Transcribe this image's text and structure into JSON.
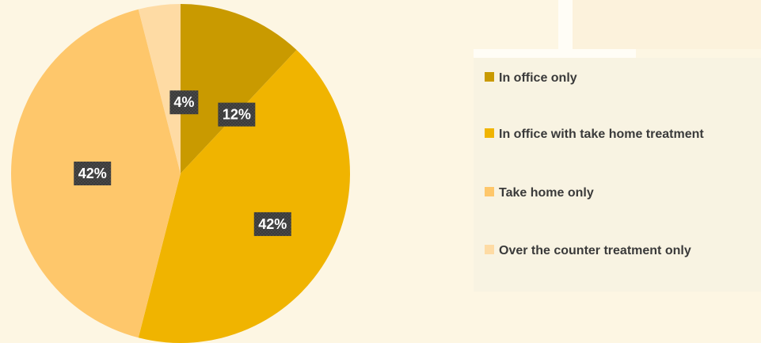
{
  "chart_data": {
    "type": "pie",
    "categories": [
      "In office only",
      "In office with take home treatment",
      "Take home only",
      "Over the counter treatment only"
    ],
    "values": [
      12,
      42,
      42,
      4
    ],
    "data_labels": [
      "12%",
      "42%",
      "42%",
      "4%"
    ],
    "colors": [
      "#c99a00",
      "#f0b400",
      "#fec76b",
      "#fedba4"
    ],
    "legend_position": "right",
    "start_angle_deg": 0,
    "direction": "clockwise"
  },
  "legend": {
    "items": [
      {
        "label": "In office only",
        "color": "#c99a00"
      },
      {
        "label": "In office with take home treatment",
        "color": "#f0b400"
      },
      {
        "label": "Take home only",
        "color": "#fec76b"
      },
      {
        "label": "Over the counter treatment only",
        "color": "#fedba4"
      }
    ]
  }
}
